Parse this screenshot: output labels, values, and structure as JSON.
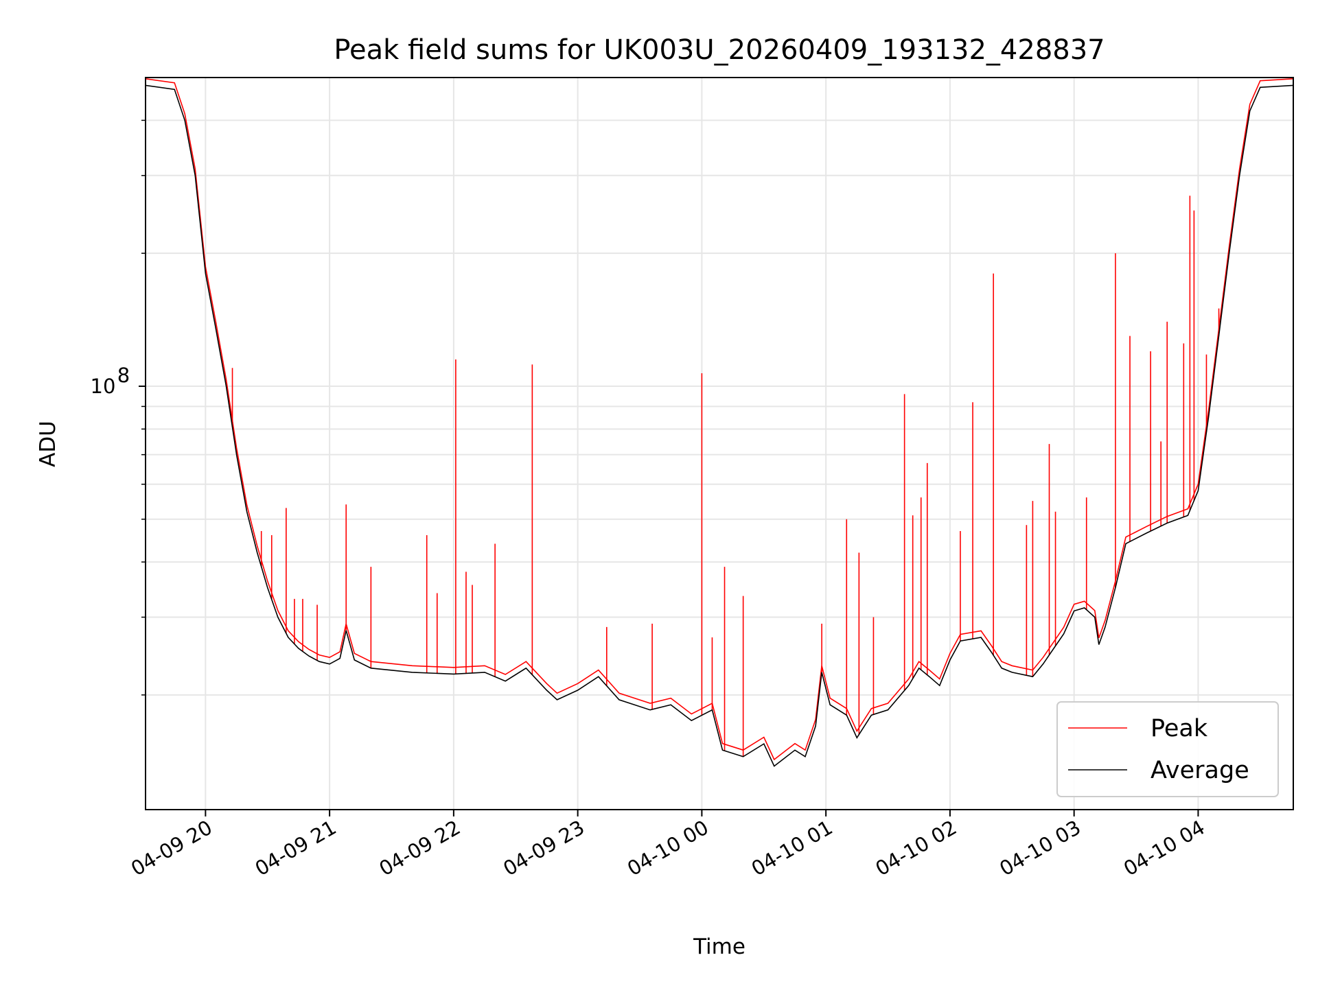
{
  "chart_data": {
    "type": "line",
    "title": "Peak field sums for UK003U_20260409_193132_428837",
    "xlabel": "Time",
    "ylabel": "ADU",
    "y_scale": "log",
    "ylim": [
      11000000,
      500000000
    ],
    "x_range": [
      "2026-04-09 19:31",
      "2026-04-10 04:46"
    ],
    "x_ticks": [
      {
        "t": "2026-04-09 20:00",
        "label": "04-09 20"
      },
      {
        "t": "2026-04-09 21:00",
        "label": "04-09 21"
      },
      {
        "t": "2026-04-09 22:00",
        "label": "04-09 22"
      },
      {
        "t": "2026-04-09 23:00",
        "label": "04-09 23"
      },
      {
        "t": "2026-04-10 00:00",
        "label": "04-10 00"
      },
      {
        "t": "2026-04-10 01:00",
        "label": "04-10 01"
      },
      {
        "t": "2026-04-10 02:00",
        "label": "04-10 02"
      },
      {
        "t": "2026-04-10 03:00",
        "label": "04-10 03"
      },
      {
        "t": "2026-04-10 04:00",
        "label": "04-10 04"
      }
    ],
    "y_ticks_major": [
      {
        "value": 100000000,
        "base": "10",
        "exp": "8"
      }
    ],
    "y_ticks_minor": [
      20000000,
      30000000,
      40000000,
      50000000,
      60000000,
      70000000,
      80000000,
      90000000,
      200000000,
      300000000,
      400000000
    ],
    "grid": true,
    "legend_position": "lower right",
    "series": [
      {
        "name": "Average",
        "color": "#000000",
        "points": [
          [
            "2026-04-09 19:31",
            480000000
          ],
          [
            "2026-04-09 19:45",
            470000000
          ],
          [
            "2026-04-09 19:50",
            400000000
          ],
          [
            "2026-04-09 19:55",
            300000000
          ],
          [
            "2026-04-09 20:00",
            180000000
          ],
          [
            "2026-04-09 20:05",
            135000000
          ],
          [
            "2026-04-09 20:10",
            100000000
          ],
          [
            "2026-04-09 20:15",
            70000000
          ],
          [
            "2026-04-09 20:20",
            52000000
          ],
          [
            "2026-04-09 20:25",
            42000000
          ],
          [
            "2026-04-09 20:30",
            35000000
          ],
          [
            "2026-04-09 20:35",
            30000000
          ],
          [
            "2026-04-09 20:40",
            27000000
          ],
          [
            "2026-04-09 20:45",
            25500000
          ],
          [
            "2026-04-09 20:50",
            24500000
          ],
          [
            "2026-04-09 20:55",
            23800000
          ],
          [
            "2026-04-09 21:00",
            23500000
          ],
          [
            "2026-04-09 21:05",
            24200000
          ],
          [
            "2026-04-09 21:08",
            28000000
          ],
          [
            "2026-04-09 21:12",
            24000000
          ],
          [
            "2026-04-09 21:20",
            23000000
          ],
          [
            "2026-04-09 21:40",
            22500000
          ],
          [
            "2026-04-09 22:00",
            22300000
          ],
          [
            "2026-04-09 22:15",
            22500000
          ],
          [
            "2026-04-09 22:25",
            21500000
          ],
          [
            "2026-04-09 22:35",
            23000000
          ],
          [
            "2026-04-09 22:45",
            20500000
          ],
          [
            "2026-04-09 22:50",
            19500000
          ],
          [
            "2026-04-09 23:00",
            20500000
          ],
          [
            "2026-04-09 23:10",
            22000000
          ],
          [
            "2026-04-09 23:20",
            19500000
          ],
          [
            "2026-04-09 23:35",
            18500000
          ],
          [
            "2026-04-09 23:45",
            19000000
          ],
          [
            "2026-04-09 23:55",
            17500000
          ],
          [
            "2026-04-10 00:05",
            18500000
          ],
          [
            "2026-04-10 00:10",
            15000000
          ],
          [
            "2026-04-10 00:20",
            14500000
          ],
          [
            "2026-04-10 00:30",
            15500000
          ],
          [
            "2026-04-10 00:35",
            13800000
          ],
          [
            "2026-04-10 00:45",
            15000000
          ],
          [
            "2026-04-10 00:50",
            14500000
          ],
          [
            "2026-04-10 00:55",
            17000000
          ],
          [
            "2026-04-10 00:58",
            22500000
          ],
          [
            "2026-04-10 01:02",
            19000000
          ],
          [
            "2026-04-10 01:10",
            18000000
          ],
          [
            "2026-04-10 01:15",
            16000000
          ],
          [
            "2026-04-10 01:22",
            18000000
          ],
          [
            "2026-04-10 01:30",
            18500000
          ],
          [
            "2026-04-10 01:40",
            21000000
          ],
          [
            "2026-04-10 01:45",
            23000000
          ],
          [
            "2026-04-10 01:50",
            22000000
          ],
          [
            "2026-04-10 01:55",
            21000000
          ],
          [
            "2026-04-10 02:00",
            24000000
          ],
          [
            "2026-04-10 02:05",
            26500000
          ],
          [
            "2026-04-10 02:15",
            27000000
          ],
          [
            "2026-04-10 02:20",
            25000000
          ],
          [
            "2026-04-10 02:25",
            23000000
          ],
          [
            "2026-04-10 02:30",
            22500000
          ],
          [
            "2026-04-10 02:40",
            22000000
          ],
          [
            "2026-04-10 02:45",
            23500000
          ],
          [
            "2026-04-10 02:55",
            27500000
          ],
          [
            "2026-04-10 03:00",
            31000000
          ],
          [
            "2026-04-10 03:05",
            31500000
          ],
          [
            "2026-04-10 03:10",
            30000000
          ],
          [
            "2026-04-10 03:12",
            26000000
          ],
          [
            "2026-04-10 03:15",
            28500000
          ],
          [
            "2026-04-10 03:20",
            35000000
          ],
          [
            "2026-04-10 03:25",
            44000000
          ],
          [
            "2026-04-10 03:35",
            46500000
          ],
          [
            "2026-04-10 03:45",
            49000000
          ],
          [
            "2026-04-10 03:55",
            51000000
          ],
          [
            "2026-04-10 04:00",
            58000000
          ],
          [
            "2026-04-10 04:05",
            85000000
          ],
          [
            "2026-04-10 04:10",
            130000000
          ],
          [
            "2026-04-10 04:15",
            200000000
          ],
          [
            "2026-04-10 04:20",
            300000000
          ],
          [
            "2026-04-10 04:25",
            420000000
          ],
          [
            "2026-04-10 04:30",
            475000000
          ],
          [
            "2026-04-10 04:46",
            480000000
          ]
        ]
      },
      {
        "name": "Peak",
        "color": "#ff0000",
        "spikes": [
          [
            "2026-04-09 20:13",
            110000000
          ],
          [
            "2026-04-09 20:27",
            47000000
          ],
          [
            "2026-04-09 20:32",
            46000000
          ],
          [
            "2026-04-09 20:39",
            53000000
          ],
          [
            "2026-04-09 20:43",
            33000000
          ],
          [
            "2026-04-09 20:47",
            33000000
          ],
          [
            "2026-04-09 20:54",
            32000000
          ],
          [
            "2026-04-09 21:08",
            54000000
          ],
          [
            "2026-04-09 21:20",
            39000000
          ],
          [
            "2026-04-09 21:47",
            46000000
          ],
          [
            "2026-04-09 21:52",
            34000000
          ],
          [
            "2026-04-09 22:01",
            115000000
          ],
          [
            "2026-04-09 22:06",
            38000000
          ],
          [
            "2026-04-09 22:09",
            35500000
          ],
          [
            "2026-04-09 22:20",
            44000000
          ],
          [
            "2026-04-09 22:38",
            112000000
          ],
          [
            "2026-04-09 23:14",
            28500000
          ],
          [
            "2026-04-09 23:36",
            29000000
          ],
          [
            "2026-04-10 00:00",
            107000000
          ],
          [
            "2026-04-10 00:05",
            27000000
          ],
          [
            "2026-04-10 00:11",
            39000000
          ],
          [
            "2026-04-10 00:20",
            33500000
          ],
          [
            "2026-04-10 00:58",
            29000000
          ],
          [
            "2026-04-10 01:10",
            50000000
          ],
          [
            "2026-04-10 01:16",
            42000000
          ],
          [
            "2026-04-10 01:23",
            30000000
          ],
          [
            "2026-04-10 01:38",
            96000000
          ],
          [
            "2026-04-10 01:42",
            51000000
          ],
          [
            "2026-04-10 01:46",
            56000000
          ],
          [
            "2026-04-10 01:49",
            67000000
          ],
          [
            "2026-04-10 02:05",
            47000000
          ],
          [
            "2026-04-10 02:11",
            92000000
          ],
          [
            "2026-04-10 02:21",
            180000000
          ],
          [
            "2026-04-10 02:37",
            48500000
          ],
          [
            "2026-04-10 02:40",
            55000000
          ],
          [
            "2026-04-10 02:48",
            74000000
          ],
          [
            "2026-04-10 02:51",
            52000000
          ],
          [
            "2026-04-10 03:06",
            56000000
          ],
          [
            "2026-04-10 03:20",
            200000000
          ],
          [
            "2026-04-10 03:27",
            130000000
          ],
          [
            "2026-04-10 03:37",
            120000000
          ],
          [
            "2026-04-10 03:42",
            75000000
          ],
          [
            "2026-04-10 03:45",
            140000000
          ],
          [
            "2026-04-10 03:53",
            125000000
          ],
          [
            "2026-04-10 03:56",
            270000000
          ],
          [
            "2026-04-10 03:58",
            250000000
          ],
          [
            "2026-04-10 04:04",
            118000000
          ],
          [
            "2026-04-10 04:10",
            150000000
          ]
        ]
      }
    ]
  }
}
